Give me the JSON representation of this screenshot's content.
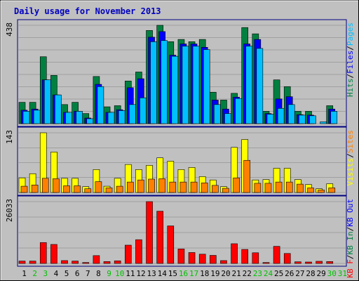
{
  "chart_data": {
    "type": "bar",
    "title": "Daily usage for November 2013",
    "x": [
      "1",
      "2",
      "3",
      "4",
      "5",
      "6",
      "7",
      "8",
      "9",
      "10",
      "11",
      "12",
      "13",
      "14",
      "15",
      "16",
      "17",
      "18",
      "19",
      "20",
      "21",
      "22",
      "23",
      "24",
      "25",
      "26",
      "27",
      "28",
      "29",
      "30",
      "31"
    ],
    "weekend_days": [
      "2",
      "3",
      "9",
      "10",
      "16",
      "17",
      "23",
      "24",
      "30",
      "31"
    ],
    "colors": {
      "hits": "#008040",
      "files": "#0000ff",
      "pages": "#00c0ff",
      "visits": "#ffff00",
      "sites": "#ff8000",
      "kbin": "#008040",
      "kbout": "#0000ff",
      "kbf": "#ff0000",
      "background": "#c0c0c0",
      "frame": "#000080",
      "weekday_label": "#000000",
      "weekend_label": "#00c000"
    },
    "panels": [
      {
        "id": "hits",
        "max_label": "438",
        "max": 438,
        "legend": [
          {
            "text": "Hits",
            "color": "#008040"
          },
          {
            "text": "/",
            "color": "#000000"
          },
          {
            "text": "Files",
            "color": "#0000ff"
          },
          {
            "text": "/",
            "color": "#000000"
          },
          {
            "text": "Pages",
            "color": "#00c0ff"
          }
        ],
        "series": [
          {
            "name": "Hits",
            "color": "#008040",
            "values": [
              95,
              95,
              298,
              215,
              85,
              95,
              45,
              210,
              75,
              80,
              190,
              230,
              415,
              438,
              365,
              375,
              365,
              375,
              140,
              105,
              135,
              428,
              400,
              55,
              195,
              165,
              55,
              55,
              0,
              80,
              0
            ]
          },
          {
            "name": "Files",
            "color": "#0000ff",
            "values": [
              60,
              65,
              195,
              128,
              50,
              55,
              25,
              175,
              50,
              62,
              160,
              200,
              385,
              410,
              305,
              355,
              355,
              340,
              105,
              65,
              118,
              355,
              375,
              45,
              110,
              120,
              40,
              38,
              0,
              65,
              0
            ]
          },
          {
            "name": "Pages",
            "color": "#00c0ff",
            "values": [
              55,
              60,
              195,
              128,
              50,
              55,
              22,
              165,
              50,
              58,
              85,
              115,
              365,
              370,
              300,
              345,
              345,
              330,
              85,
              45,
              112,
              345,
              335,
              42,
              68,
              85,
              38,
              35,
              8,
              55,
              0
            ]
          }
        ]
      },
      {
        "id": "visits",
        "max_label": "143",
        "max": 143,
        "legend": [
          {
            "text": "Visits",
            "color": "#ffff00"
          },
          {
            "text": "/",
            "color": "#000000"
          },
          {
            "text": "Sites",
            "color": "#ff8000"
          }
        ],
        "series": [
          {
            "name": "Visits",
            "color": "#ffff00",
            "values": [
              35,
              45,
              143,
              97,
              34,
              34,
              14,
              55,
              15,
              34,
              67,
              55,
              65,
              83,
              75,
              55,
              60,
              38,
              30,
              14,
              108,
              127,
              30,
              31,
              58,
              58,
              31,
              19,
              9,
              21,
              0
            ]
          },
          {
            "name": "Sites",
            "color": "#ff8000",
            "values": [
              15,
              18,
              34,
              33,
              16,
              16,
              9,
              26,
              11,
              15,
              25,
              30,
              32,
              33,
              25,
              25,
              25,
              23,
              17,
              10,
              35,
              77,
              22,
              22,
              25,
              25,
              20,
              11,
              6,
              11,
              0
            ]
          }
        ]
      },
      {
        "id": "kbytes",
        "max_label": "26033",
        "max": 26033,
        "legend": [
          {
            "text": "KB F",
            "color": "#ff0000"
          },
          {
            "text": "/",
            "color": "#000000"
          },
          {
            "text": "KB In",
            "color": "#008040"
          },
          {
            "text": "/",
            "color": "#000000"
          },
          {
            "text": "KB Out",
            "color": "#0000ff"
          }
        ],
        "series": [
          {
            "name": "KB F",
            "color": "#ff0000",
            "values": [
              1000,
              1000,
              8800,
              8000,
              1200,
              1000,
              400,
              3300,
              800,
              1100,
              7700,
              10000,
              26033,
              22000,
              15800,
              6100,
              4600,
              3900,
              3400,
              1200,
              8300,
              5900,
              4500,
              400,
              7200,
              4200,
              700,
              600,
              900,
              800,
              0
            ]
          }
        ]
      }
    ]
  }
}
